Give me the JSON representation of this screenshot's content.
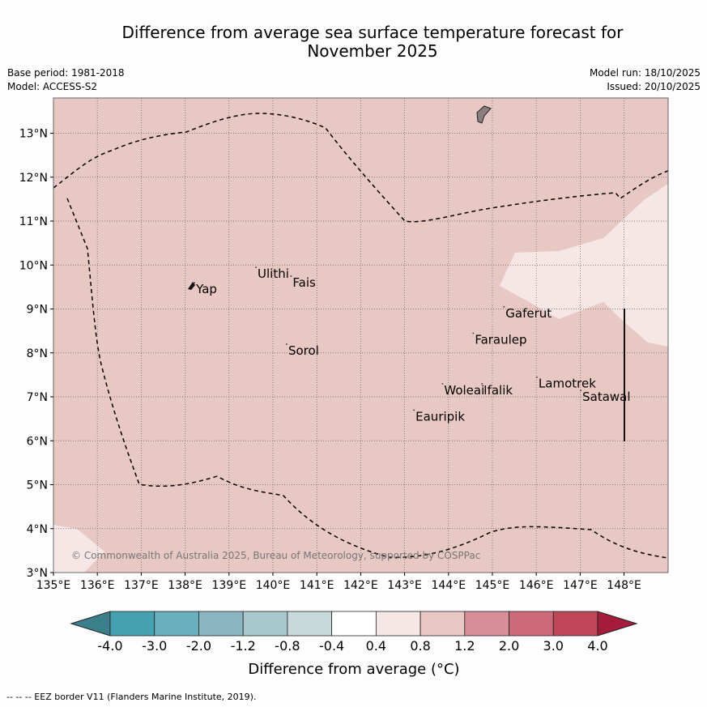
{
  "header": {
    "title_line1": "Difference from average sea surface temperature forecast for",
    "title_line2": "November 2025",
    "base_period": "Base period: 1981-2018",
    "model": "Model: ACCESS-S2",
    "model_run": "Model run: 18/10/2025",
    "issued": "Issued: 20/10/2025"
  },
  "map": {
    "lon_labels": [
      "135°E",
      "136°E",
      "137°E",
      "138°E",
      "139°E",
      "140°E",
      "141°E",
      "142°E",
      "143°E",
      "144°E",
      "145°E",
      "146°E",
      "147°E",
      "148°E"
    ],
    "lat_labels": [
      "3°N",
      "4°N",
      "5°N",
      "6°N",
      "7°N",
      "8°N",
      "9°N",
      "10°N",
      "11°N",
      "12°N",
      "13°N"
    ],
    "lon_range": [
      135,
      149
    ],
    "lat_range": [
      3,
      13.8
    ],
    "places": [
      {
        "name": "Yap",
        "lon": 138.25,
        "lat": 9.45
      },
      {
        "name": "Ulithi",
        "lon": 139.65,
        "lat": 9.8
      },
      {
        "name": "Fais",
        "lon": 140.45,
        "lat": 9.6
      },
      {
        "name": "Gaferut",
        "lon": 145.3,
        "lat": 8.9
      },
      {
        "name": "Faraulep",
        "lon": 144.6,
        "lat": 8.3
      },
      {
        "name": "Sorol",
        "lon": 140.35,
        "lat": 8.05
      },
      {
        "name": "Lamotrek",
        "lon": 146.05,
        "lat": 7.3
      },
      {
        "name": "Satawal",
        "lon": 147.05,
        "lat": 7.0
      },
      {
        "name": "Woleai",
        "lon": 143.9,
        "lat": 7.15
      },
      {
        "name": "Ifalik",
        "lon": 144.8,
        "lat": 7.15
      },
      {
        "name": "Eauripik",
        "lon": 143.25,
        "lat": 6.55
      }
    ],
    "copyright": "© Commonwealth of Australia 2025, Bureau of Meteorology, supported by COSPPac",
    "background_color": "#e7c8c3",
    "warm_patch_color": "#f5e7e6"
  },
  "colorbar": {
    "tick_labels": [
      "-4.0",
      "-3.0",
      "-2.0",
      "-1.2",
      "-0.8",
      "-0.4",
      "0.4",
      "0.8",
      "1.2",
      "2.0",
      "3.0",
      "4.0"
    ],
    "colors": [
      "#3b7f8a",
      "#45a1b0",
      "#6aafbd",
      "#89b6c2",
      "#a8c8cd",
      "#c8d9dc",
      "#ffffff",
      "#f5e7e6",
      "#e7c8c3",
      "#d68f96",
      "#cc6a77",
      "#c04556",
      "#a51c3b"
    ],
    "label": "Difference from average (°C)"
  },
  "footnote": "-- -- -- EEZ border V11 (Flanders Marine Institute, 2019)."
}
